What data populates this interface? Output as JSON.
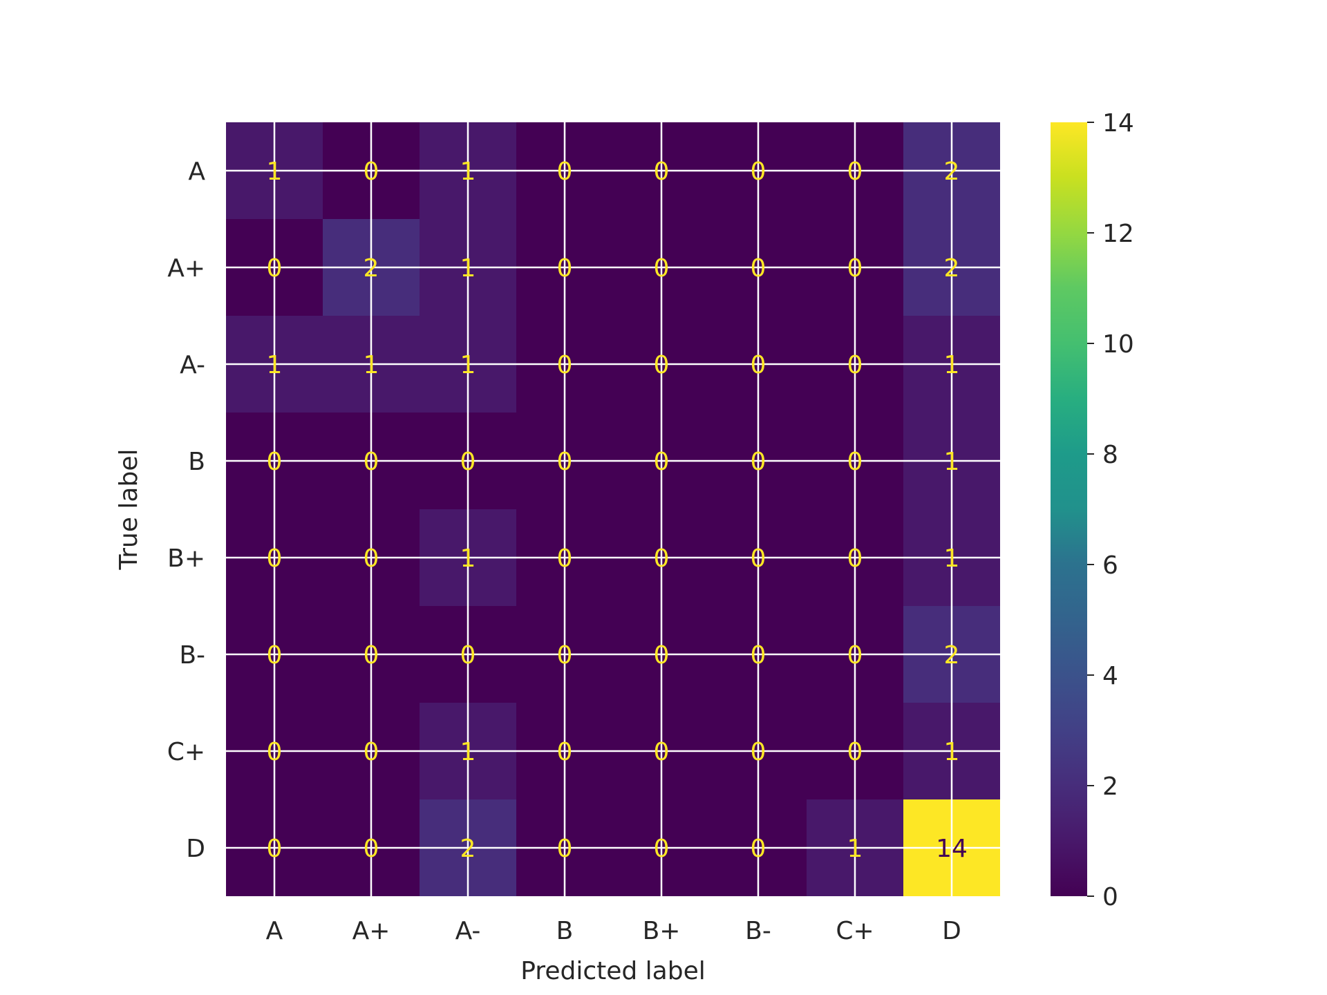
{
  "chart_data": {
    "type": "heatmap",
    "title": "",
    "xlabel": "Predicted label",
    "ylabel": "True label",
    "x_categories": [
      "A",
      "A+",
      "A-",
      "B",
      "B+",
      "B-",
      "C+",
      "D"
    ],
    "y_categories": [
      "A",
      "A+",
      "A-",
      "B",
      "B+",
      "B-",
      "C+",
      "D"
    ],
    "values": [
      [
        1,
        0,
        1,
        0,
        0,
        0,
        0,
        2
      ],
      [
        0,
        2,
        1,
        0,
        0,
        0,
        0,
        2
      ],
      [
        1,
        1,
        1,
        0,
        0,
        0,
        0,
        1
      ],
      [
        0,
        0,
        0,
        0,
        0,
        0,
        0,
        1
      ],
      [
        0,
        0,
        1,
        0,
        0,
        0,
        0,
        1
      ],
      [
        0,
        0,
        0,
        0,
        0,
        0,
        0,
        2
      ],
      [
        0,
        0,
        1,
        0,
        0,
        0,
        0,
        1
      ],
      [
        0,
        0,
        2,
        0,
        0,
        0,
        1,
        14
      ]
    ],
    "colormap": "viridis",
    "colorbar": {
      "range": [
        0,
        14
      ],
      "ticks": [
        "0",
        "2",
        "4",
        "6",
        "8",
        "10",
        "12",
        "14"
      ]
    },
    "grid": true,
    "colors": {
      "low": "#440154",
      "high": "#fde725",
      "grid": "#ffffff",
      "text": "#262626"
    }
  }
}
